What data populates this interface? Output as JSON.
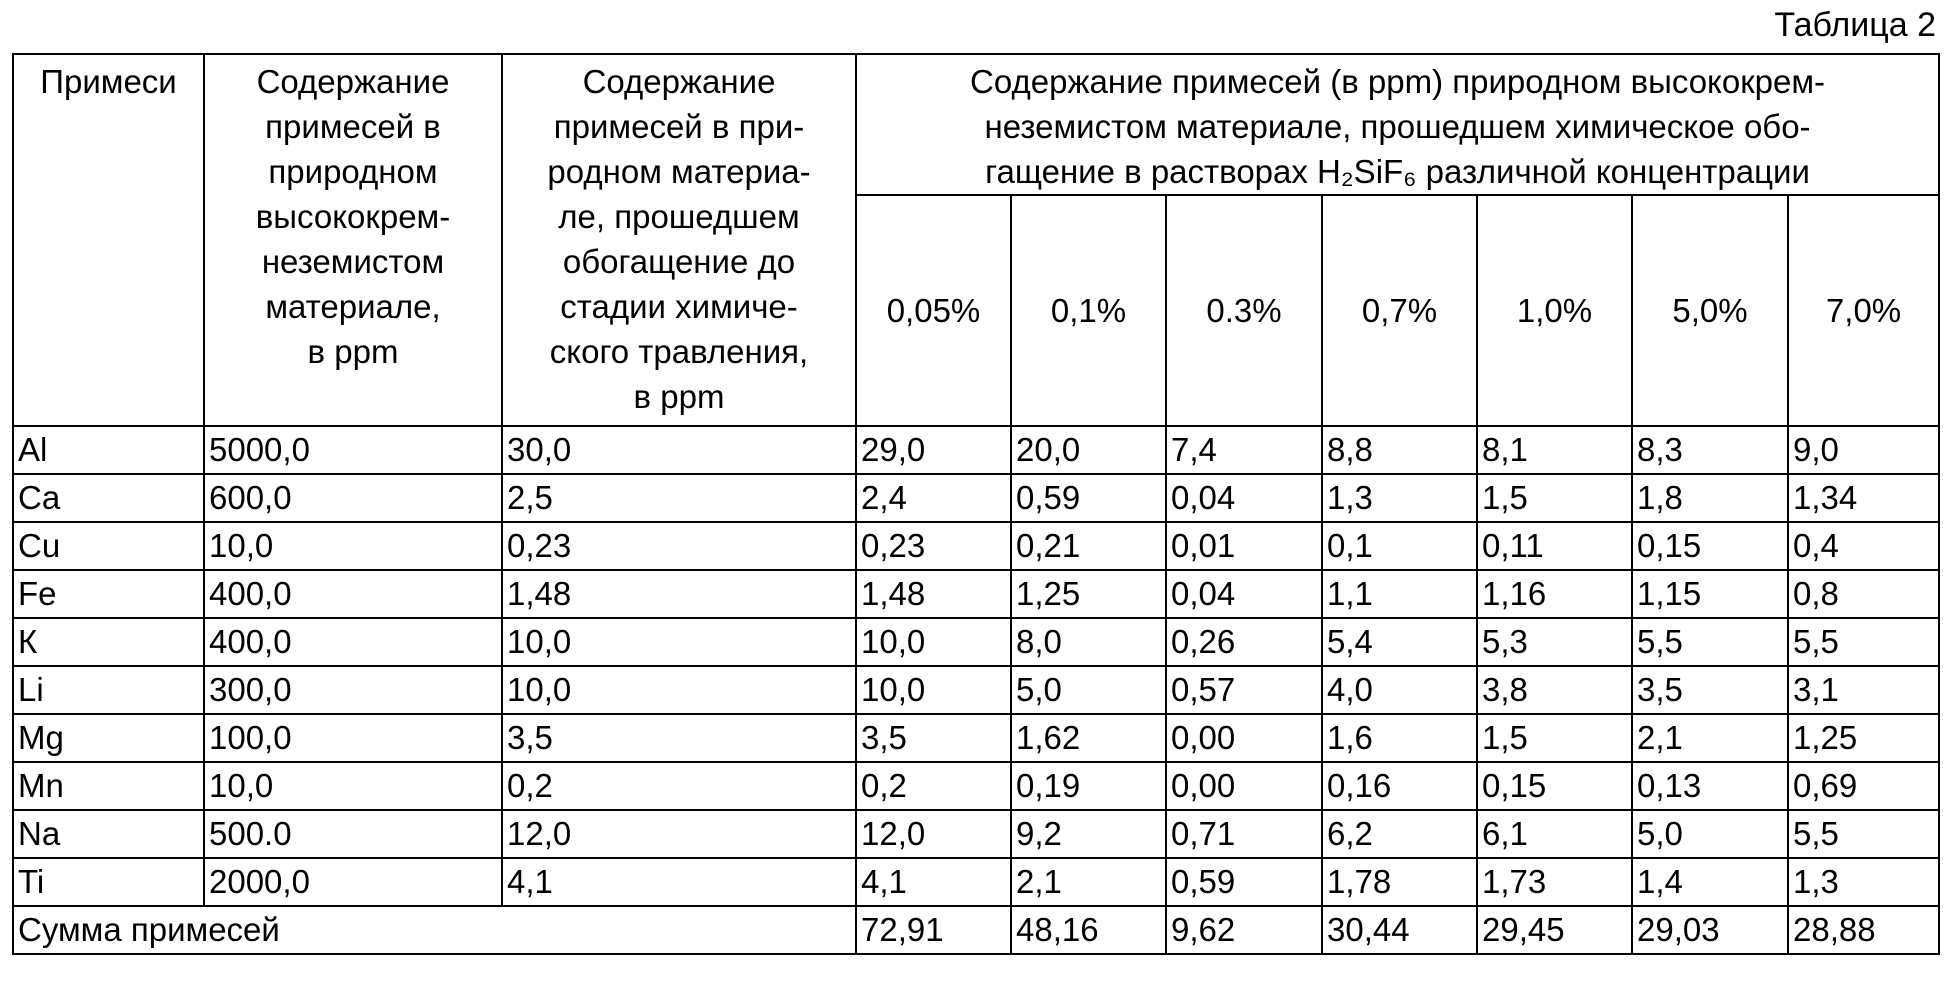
{
  "caption": "Таблица 2",
  "table": {
    "header": [
      "Примеси",
      "Содержание\nпримесей в\nприродном\nвысококрем-\nнеземистом\nматериале,\nв ppm",
      "Содержание\nпримесей в при-\nродном материа-\nле, прошедшем\nобогащение до\nстадии химиче-\nского травления,\nв ppm",
      "Содержание примесей (в ppm) природном высококрем-\nнеземистом материале, прошедшем химическое обо-\nгащение в растворах H₂SiF₆ различной концентрации"
    ],
    "concentrations": [
      "0,05%",
      "0,1%",
      "0.3%",
      "0,7%",
      "1,0%",
      "5,0%",
      "7,0%"
    ],
    "rows": [
      [
        "Al",
        "5000,0",
        "30,0",
        "29,0",
        "20,0",
        "7,4",
        "8,8",
        "8,1",
        "8,3",
        "9,0"
      ],
      [
        "Ca",
        "600,0",
        "2,5",
        "2,4",
        "0,59",
        "0,04",
        "1,3",
        "1,5",
        "1,8",
        "1,34"
      ],
      [
        "Cu",
        "10,0",
        "0,23",
        "0,23",
        "0,21",
        "0,01",
        "0,1",
        "0,11",
        "0,15",
        "0,4"
      ],
      [
        "Fe",
        "400,0",
        "1,48",
        "1,48",
        "1,25",
        "0,04",
        "1,1",
        "1,16",
        "1,15",
        "0,8"
      ],
      [
        "К",
        "400,0",
        "10,0",
        "10,0",
        "8,0",
        "0,26",
        "5,4",
        "5,3",
        "5,5",
        "5,5"
      ],
      [
        "Li",
        "300,0",
        "10,0",
        "10,0",
        "5,0",
        "0,57",
        "4,0",
        "3,8",
        "3,5",
        "3,1"
      ],
      [
        "Mg",
        "100,0",
        "3,5",
        "3,5",
        "1,62",
        "0,00",
        "1,6",
        "1,5",
        "2,1",
        "1,25"
      ],
      [
        "Mn",
        "10,0",
        "0,2",
        "0,2",
        "0,19",
        "0,00",
        "0,16",
        "0,15",
        "0,13",
        "0,69"
      ],
      [
        "Na",
        "500.0",
        "12,0",
        "12,0",
        "9,2",
        "0,71",
        "6,2",
        "6,1",
        "5,0",
        "5,5"
      ],
      [
        "Ti",
        "2000,0",
        "4,1",
        "4,1",
        "2,1",
        "0,59",
        "1,78",
        "1,73",
        "1,4",
        "1,3"
      ]
    ],
    "total": {
      "label": "Сумма примесей",
      "values": [
        "72,91",
        "48,16",
        "9,62",
        "30,44",
        "29,45",
        "29,03",
        "28,88"
      ]
    }
  }
}
